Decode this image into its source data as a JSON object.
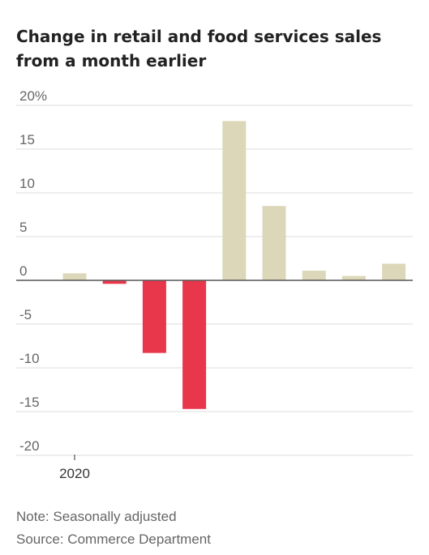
{
  "title": "Change in retail and food services sales from a month earlier",
  "note": "Note: Seasonally adjusted",
  "source": "Source: Commerce Department",
  "colors": {
    "positive": "#dcd7b8",
    "negative": "#e8364a",
    "grid": "#dddddd",
    "zero_line": "#555555",
    "tick_text": "#666666"
  },
  "chart_data": {
    "type": "bar",
    "title": "Change in retail and food services sales from a month earlier",
    "xlabel": "",
    "ylabel": "",
    "ylim": [
      -20,
      20
    ],
    "y_ticks": [
      20,
      15,
      10,
      5,
      0,
      -5,
      -10,
      -15,
      -20
    ],
    "y_tick_labels": [
      "20%",
      "15",
      "10",
      "5",
      "0",
      "-5",
      "-10",
      "-15",
      "-20"
    ],
    "x_tick_labels": [
      {
        "label": "2020",
        "index": 0
      }
    ],
    "values": [
      0.8,
      -0.4,
      -8.3,
      -14.7,
      18.2,
      8.5,
      1.1,
      0.5,
      1.9
    ],
    "grid": true,
    "legend": "none"
  }
}
